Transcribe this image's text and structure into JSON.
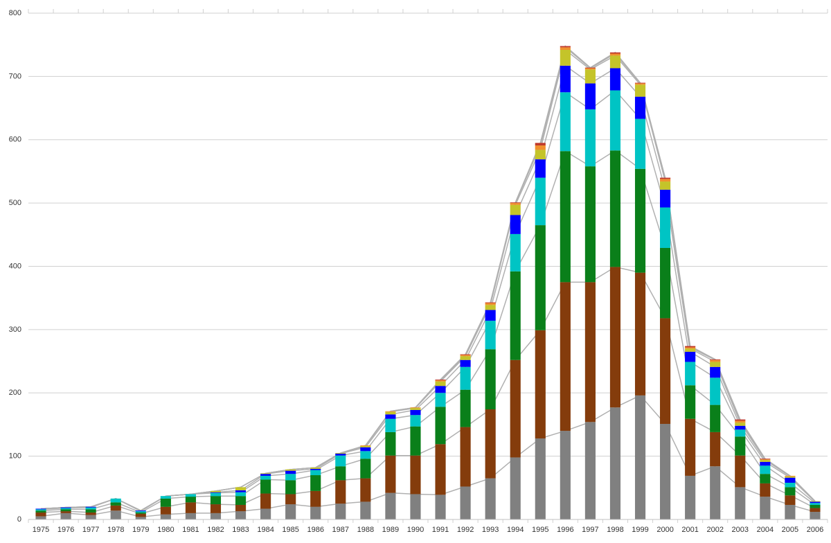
{
  "chart_data": {
    "type": "stacked_bar",
    "categories": [
      "1975",
      "1976",
      "1977",
      "1978",
      "1979",
      "1980",
      "1981",
      "1982",
      "1983",
      "1984",
      "1985",
      "1986",
      "1987",
      "1988",
      "1989",
      "1990",
      "1991",
      "1992",
      "1993",
      "1994",
      "1995",
      "1996",
      "1997",
      "1998",
      "1999",
      "2000",
      "2001",
      "2002",
      "2003",
      "2004",
      "2005",
      "2006"
    ],
    "series": [
      {
        "color": "#808080",
        "values": [
          5,
          10,
          7,
          14,
          4,
          8,
          10,
          10,
          13,
          17,
          24,
          20,
          25,
          28,
          42,
          40,
          39,
          52,
          65,
          98,
          128,
          140,
          154,
          177,
          196,
          151,
          69,
          84,
          51,
          36,
          23,
          12
        ]
      },
      {
        "color": "#843c0c",
        "values": [
          6,
          3,
          4,
          8,
          5,
          12,
          17,
          14,
          10,
          24,
          16,
          25,
          37,
          37,
          59,
          61,
          80,
          94,
          109,
          154,
          171,
          235,
          221,
          222,
          194,
          167,
          90,
          54,
          50,
          21,
          15,
          6
        ]
      },
      {
        "color": "#0a7f1a",
        "values": [
          3,
          3,
          5,
          5,
          2,
          13,
          9,
          13,
          14,
          22,
          22,
          25,
          22,
          31,
          37,
          46,
          59,
          59,
          95,
          140,
          166,
          207,
          183,
          184,
          164,
          111,
          53,
          43,
          30,
          15,
          13,
          5
        ]
      },
      {
        "color": "#00c4c4",
        "values": [
          2,
          2,
          3,
          6,
          2,
          4,
          4,
          5,
          6,
          6,
          10,
          8,
          17,
          12,
          21,
          18,
          22,
          36,
          45,
          59,
          75,
          93,
          90,
          95,
          79,
          64,
          37,
          43,
          11,
          13,
          7,
          3
        ]
      },
      {
        "color": "#0000ff",
        "values": [
          1,
          1,
          1,
          0,
          1,
          0,
          0,
          1,
          3,
          3,
          5,
          2,
          3,
          6,
          7,
          8,
          11,
          11,
          17,
          30,
          29,
          42,
          41,
          35,
          35,
          28,
          16,
          17,
          6,
          6,
          8,
          2
        ]
      },
      {
        "color": "#c4c42a",
        "values": [
          0,
          0,
          0,
          0,
          0,
          0,
          0,
          2,
          5,
          1,
          2,
          2,
          1,
          2,
          4,
          3,
          7,
          6,
          8,
          16,
          15,
          25,
          22,
          20,
          19,
          13,
          5,
          8,
          5,
          3,
          2,
          1
        ]
      },
      {
        "color": "#f0902e",
        "values": [
          0,
          0,
          0,
          0,
          0,
          0,
          0,
          0,
          0,
          0,
          0,
          0,
          0,
          1,
          1,
          1,
          2,
          2,
          3,
          3,
          7,
          4,
          2,
          3,
          2,
          4,
          2,
          3,
          3,
          1,
          1,
          0
        ]
      },
      {
        "color": "#c0392b",
        "values": [
          0,
          0,
          0,
          0,
          0,
          0,
          0,
          0,
          0,
          0,
          0,
          0,
          0,
          0,
          0,
          0,
          1,
          1,
          1,
          1,
          4,
          2,
          1,
          2,
          1,
          2,
          2,
          1,
          2,
          1,
          0,
          0
        ]
      }
    ],
    "ylim": [
      0,
      800
    ],
    "yticks": [
      0,
      100,
      200,
      300,
      400,
      500,
      600,
      700,
      800
    ],
    "grid": true
  }
}
